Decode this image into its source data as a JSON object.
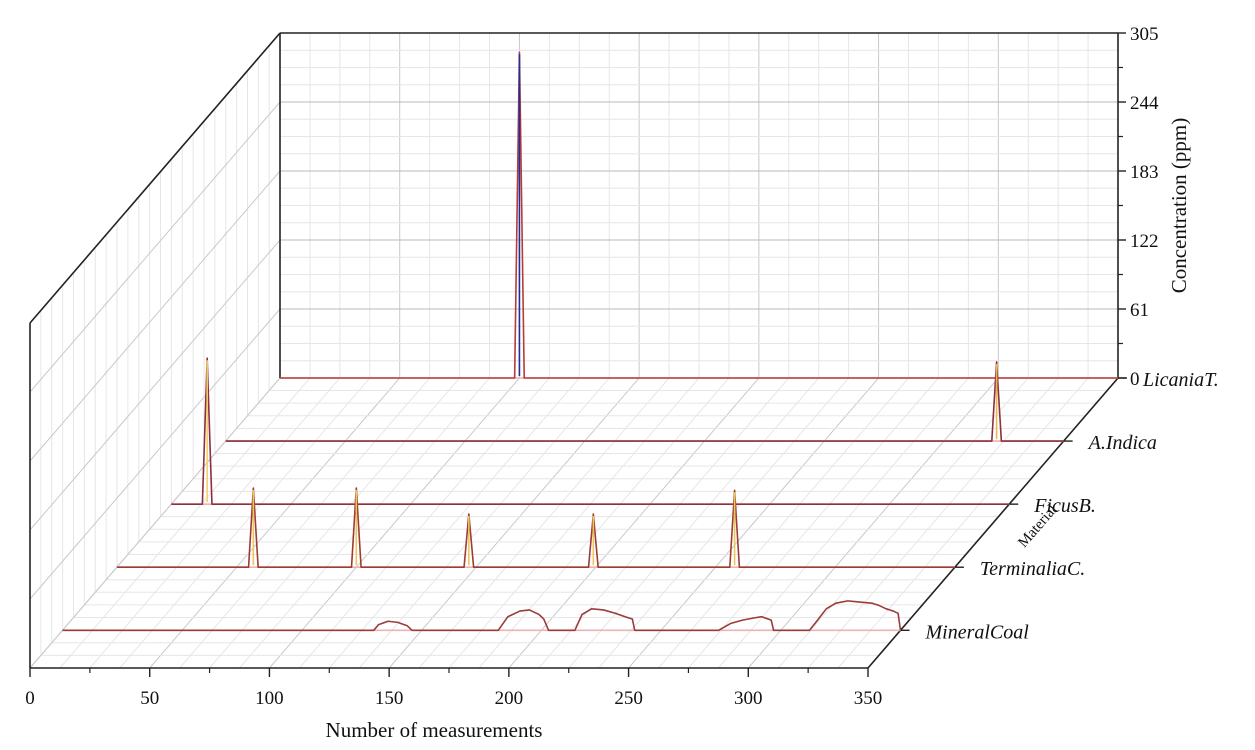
{
  "chart_data": {
    "type": "line",
    "view": "3d-waterfall",
    "title": "",
    "xlabel": "Number of measurements",
    "ylabel": "Material",
    "zlabel": "Concentration (ppm)",
    "xlim": [
      0,
      350
    ],
    "zlim": [
      0,
      305
    ],
    "x_ticks": [
      "0",
      "50",
      "100",
      "150",
      "200",
      "250",
      "300",
      "350"
    ],
    "z_ticks": [
      "0",
      "61",
      "122",
      "183",
      "244",
      "305"
    ],
    "grid": true,
    "baseline_color": "#e8b4b4",
    "series": [
      {
        "name": "MineralCoal",
        "color": "#9b3b3b",
        "points": [
          [
            0,
            0
          ],
          [
            130,
            0
          ],
          [
            132,
            5
          ],
          [
            136,
            8
          ],
          [
            140,
            7
          ],
          [
            144,
            4
          ],
          [
            146,
            0
          ],
          [
            182,
            0
          ],
          [
            186,
            12
          ],
          [
            191,
            17
          ],
          [
            195,
            18
          ],
          [
            199,
            14
          ],
          [
            201,
            10
          ],
          [
            203,
            0
          ],
          [
            214,
            0
          ],
          [
            217,
            14
          ],
          [
            221,
            19
          ],
          [
            226,
            18
          ],
          [
            231,
            15
          ],
          [
            235,
            12
          ],
          [
            238,
            10
          ],
          [
            239,
            0
          ],
          [
            274,
            0
          ],
          [
            279,
            6
          ],
          [
            284,
            9
          ],
          [
            289,
            11
          ],
          [
            292,
            12
          ],
          [
            296,
            9
          ],
          [
            297,
            0
          ],
          [
            312,
            0
          ],
          [
            315,
            8
          ],
          [
            319,
            19
          ],
          [
            323,
            24
          ],
          [
            328,
            26
          ],
          [
            333,
            25
          ],
          [
            338,
            24
          ],
          [
            341,
            22
          ],
          [
            344,
            19
          ],
          [
            347,
            17
          ],
          [
            349,
            15
          ],
          [
            350,
            0
          ]
        ]
      },
      {
        "name": "TerminaliaC.",
        "color": "#a03a32",
        "peak_color": "#e8c95a",
        "points": [
          [
            0,
            0
          ],
          [
            55,
            0
          ],
          [
            57,
            70
          ],
          [
            59,
            0
          ],
          [
            98,
            0
          ],
          [
            100,
            70
          ],
          [
            102,
            0
          ],
          [
            145,
            0
          ],
          [
            147,
            47
          ],
          [
            149,
            0
          ],
          [
            197,
            0
          ],
          [
            199,
            47
          ],
          [
            201,
            0
          ],
          [
            256,
            0
          ],
          [
            258,
            68
          ],
          [
            260,
            0
          ],
          [
            350,
            0
          ]
        ]
      },
      {
        "name": "FicusB.",
        "color": "#8e2f3a",
        "peak_color": "#f0d070",
        "points": [
          [
            0,
            0
          ],
          [
            13,
            0
          ],
          [
            15,
            129
          ],
          [
            17,
            0
          ],
          [
            350,
            0
          ]
        ]
      },
      {
        "name": "A.Indica",
        "color": "#8e2f3a",
        "peak_color": "#e8b95a",
        "points": [
          [
            0,
            0
          ],
          [
            320,
            0
          ],
          [
            322,
            70
          ],
          [
            324,
            0
          ],
          [
            350,
            0
          ]
        ]
      },
      {
        "name": "LicaniaT.",
        "color": "#b83a3a",
        "peak_color": "#1c2f9a",
        "points": [
          [
            0,
            0
          ],
          [
            98,
            0
          ],
          [
            100,
            288
          ],
          [
            102,
            0
          ],
          [
            350,
            0
          ]
        ]
      }
    ]
  }
}
